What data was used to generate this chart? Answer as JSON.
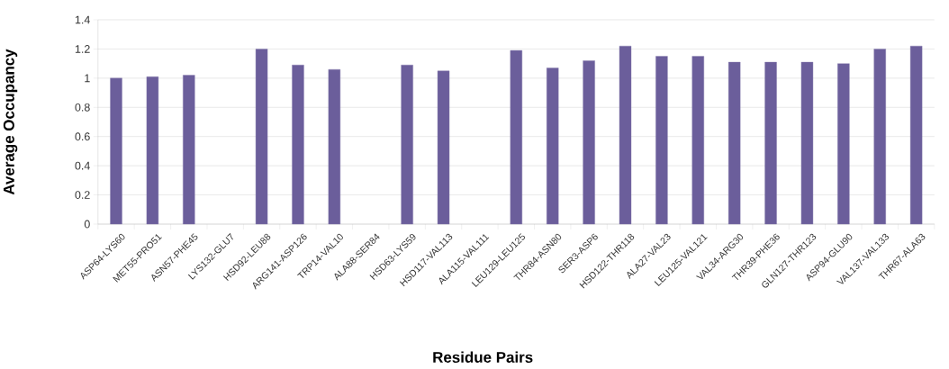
{
  "chart_data": {
    "type": "bar",
    "xlabel": "Residue Pairs",
    "ylabel": "Average Occupancy",
    "categories": [
      "ASP64-LYS60",
      "MET55-PRO51",
      "ASN57-PHE45",
      "LYS132-GLU7",
      "HSD92-LEU88",
      "ARG141-ASP126",
      "TRP14-VAL10",
      "ALA88-SER84",
      "HSD63-LYS59",
      "HSD117-VAL113",
      "ALA115-VAL111",
      "LEU129-LEU125",
      "THR84-ASN80",
      "SER3-ASP6",
      "HSD122-THR118",
      "ALA27-VAL23",
      "LEU125-VAL121",
      "VAL34-ARG30",
      "THR39-PHE36",
      "GLN127-THR123",
      "ASP94-GLU90",
      "VAL137-VAL133",
      "THR67-ALA63"
    ],
    "values": [
      1.0,
      1.01,
      1.02,
      null,
      1.2,
      1.09,
      1.06,
      null,
      1.09,
      1.05,
      null,
      1.19,
      1.07,
      1.12,
      1.22,
      1.15,
      1.15,
      1.11,
      1.11,
      1.11,
      1.1,
      1.2,
      1.22
    ],
    "color": "#6b5e9b",
    "ylim": [
      0,
      1.4
    ],
    "yticks": [
      0,
      0.2,
      0.4,
      0.6,
      0.8,
      1,
      1.2,
      1.4
    ],
    "grid": "y"
  }
}
